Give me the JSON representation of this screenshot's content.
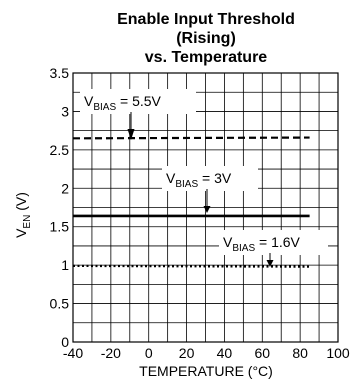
{
  "chart_data": {
    "type": "line",
    "title_lines": [
      "Enable Input Threshold",
      "(Rising)",
      "vs. Temperature"
    ],
    "xlabel": "TEMPERATURE (°C)",
    "ylabel": {
      "main": "V",
      "sub": "EN",
      "unit": " (V)"
    },
    "xlim": [
      -40,
      100
    ],
    "ylim": [
      0,
      3.5
    ],
    "x_ticks": [
      -40,
      -20,
      0,
      20,
      40,
      60,
      80,
      100
    ],
    "y_ticks": [
      0,
      0.5,
      1,
      1.5,
      2,
      2.5,
      3,
      3.5
    ],
    "x_tick_labels": [
      "-40",
      "-20",
      "0",
      "20",
      "40",
      "60",
      "80",
      "100"
    ],
    "y_tick_labels": [
      "0",
      "0.5",
      "1",
      "1.5",
      "2",
      "2.5",
      "3",
      "3.5"
    ],
    "grid": true,
    "series": [
      {
        "name": "VBIAS = 5.5V",
        "style": "dashed",
        "x": [
          -40,
          85
        ],
        "y": [
          2.65,
          2.66
        ]
      },
      {
        "name": "VBIAS = 3V",
        "style": "solid",
        "x": [
          -40,
          85
        ],
        "y": [
          1.64,
          1.64
        ]
      },
      {
        "name": "VBIAS = 1.6V",
        "style": "dotted",
        "x": [
          -40,
          85
        ],
        "y": [
          0.99,
          0.98
        ]
      }
    ],
    "annotations": [
      {
        "main": "V",
        "sub": "BIAS",
        "rest": " = 5.5V",
        "series": 0
      },
      {
        "main": "V",
        "sub": "BIAS",
        "rest": " = 3V",
        "series": 1
      },
      {
        "main": "V",
        "sub": "BIAS",
        "rest": " = 1.6V",
        "series": 2
      }
    ]
  }
}
